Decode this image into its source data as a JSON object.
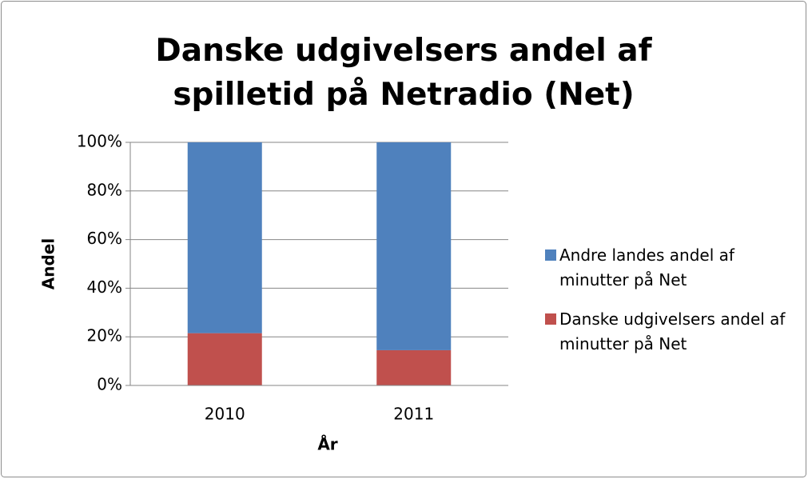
{
  "chart_data": {
    "type": "stacked_bar",
    "title": "Danske udgivelsers andel af spilletid på Netradio (Net)",
    "x_label": "År",
    "y_label": "Andel",
    "categories": [
      "2010",
      "2011"
    ],
    "series": [
      {
        "name": "Danske udgivelsers andel af minutter på Net",
        "color": "#c0504d",
        "values": [
          21.5,
          14.5
        ]
      },
      {
        "name": "Andre landes andel af minutter på Net",
        "color": "#4f81bd",
        "values": [
          78.5,
          85.5
        ]
      }
    ],
    "ylim": [
      0,
      100
    ],
    "yticks": [
      {
        "value": 0,
        "label": "0%"
      },
      {
        "value": 20,
        "label": "20%"
      },
      {
        "value": 40,
        "label": "40%"
      },
      {
        "value": 60,
        "label": "60%"
      },
      {
        "value": 80,
        "label": "80%"
      },
      {
        "value": 100,
        "label": "100%"
      }
    ],
    "grid": true,
    "legend": "right"
  }
}
